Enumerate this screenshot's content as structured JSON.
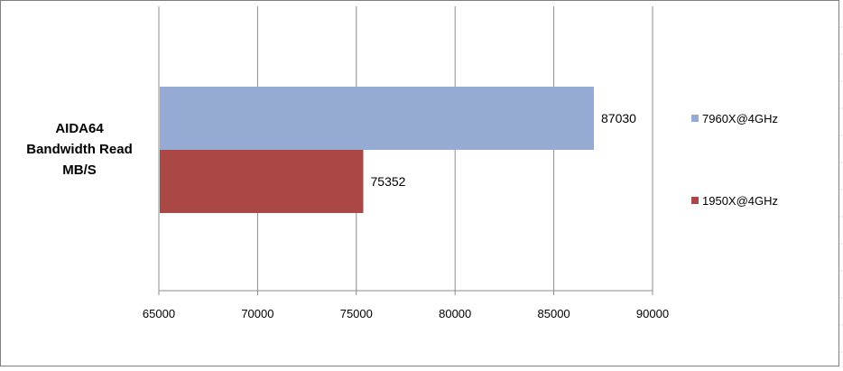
{
  "chart_data": {
    "type": "bar",
    "orientation": "horizontal",
    "categories": [
      "AIDA64 Bandwidth Read MB/S"
    ],
    "category_label_lines": [
      "AIDA64",
      "Bandwidth Read",
      "MB/S"
    ],
    "series": [
      {
        "name": "7960X@4GHz",
        "values": [
          87030
        ],
        "color": "#95abd3"
      },
      {
        "name": "1950X@4GHz",
        "values": [
          75352
        ],
        "color": "#aa4846"
      }
    ],
    "xlim": [
      65000,
      90000
    ],
    "xticks": [
      65000,
      70000,
      75000,
      80000,
      85000,
      90000
    ],
    "grid": true,
    "legend": "right",
    "data_labels": true
  }
}
